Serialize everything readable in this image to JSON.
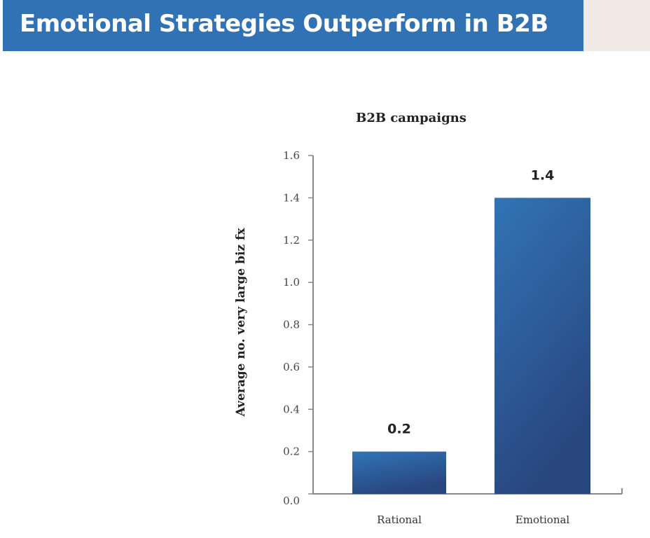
{
  "header": {
    "title": "Emotional Strategies Outperform in B2B"
  },
  "colors": {
    "banner": "#3072b3",
    "bar_top": "#3274b5",
    "bar_bottom": "#28467f"
  },
  "chart_data": {
    "type": "bar",
    "title": "B2B campaigns",
    "xlabel": "",
    "ylabel": "Average no. very large biz fx",
    "categories": [
      "Rational",
      "Emotional"
    ],
    "values": [
      0.2,
      1.4
    ],
    "data_labels": [
      "0.2",
      "1.4"
    ],
    "ylim": [
      0,
      1.6
    ],
    "yticks": [
      "0.0",
      "0.2",
      "0.4",
      "0.6",
      "0.8",
      "1.0",
      "1.2",
      "1.4",
      "1.6"
    ],
    "grid": false,
    "legend": "none"
  }
}
